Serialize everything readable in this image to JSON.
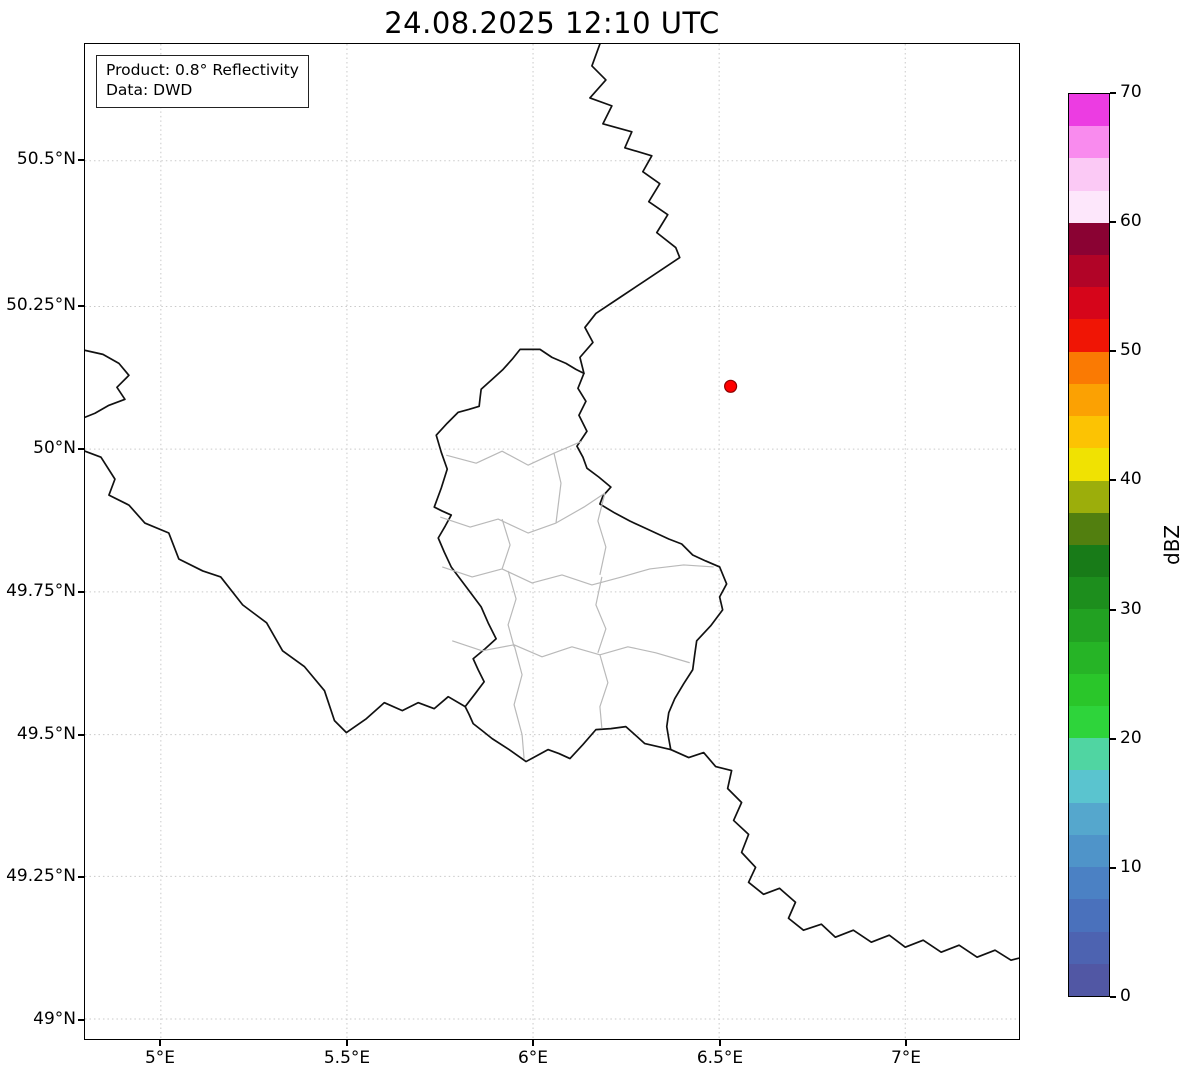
{
  "title": "24.08.2025 12:10 UTC",
  "info_box": {
    "product": "Product: 0.8° Reflectivity",
    "data_source": "Data: DWD"
  },
  "axes": {
    "x_ticks": [
      "5°E",
      "5.5°E",
      "6°E",
      "6.5°E",
      "7°E"
    ],
    "y_ticks": [
      "50.5°N",
      "50.25°N",
      "50°N",
      "49.75°N",
      "49.5°N",
      "49.25°N",
      "49°N"
    ]
  },
  "colorbar": {
    "label": "dBZ",
    "tick_labels": [
      "0",
      "10",
      "20",
      "30",
      "40",
      "50",
      "60",
      "70"
    ],
    "segment_colors_bottom_to_top": [
      "#5157a4",
      "#4d63b1",
      "#4a71bc",
      "#4b81c4",
      "#4f94c9",
      "#55a7cd",
      "#5ac4cf",
      "#50d5a2",
      "#2ed43b",
      "#2ac62a",
      "#26b426",
      "#22a122",
      "#1d8e1d",
      "#187b18",
      "#527f0f",
      "#9cae0b",
      "#f0e202",
      "#fcc303",
      "#fba103",
      "#fa7a03",
      "#f01505",
      "#d6051a",
      "#b10427",
      "#8a0233",
      "#fde7fb",
      "#fbc9f5",
      "#f98bee",
      "#ec3ce2"
    ]
  },
  "marker": {
    "label": "radar site",
    "color": "#ff0000"
  },
  "chart_data": {
    "type": "map",
    "title": "24.08.2025 12:10 UTC",
    "product": "0.8° Reflectivity",
    "data_source": "DWD",
    "lon_range_deg_e": [
      4.8,
      7.3
    ],
    "lat_range_deg_n": [
      48.97,
      50.7
    ],
    "x_tick_values_deg_e": [
      5,
      5.5,
      6,
      6.5,
      7
    ],
    "y_tick_values_deg_n": [
      49,
      49.25,
      49.5,
      49.75,
      50,
      50.25,
      50.5
    ],
    "grid": "dotted",
    "colorbar": {
      "label": "dBZ",
      "min": 0,
      "max": 70,
      "tick_step": 10,
      "segments": 28,
      "orientation": "vertical-right"
    },
    "markers": [
      {
        "name": "radar site",
        "lon_deg_e": 6.55,
        "lat_deg_n": 50.11,
        "style": "red filled circle"
      }
    ],
    "map_features": [
      "Luxembourg national outline with internal canton boundaries (gray)",
      "Belgium–Germany border (north)",
      "Germany–France border (southeast)",
      "France–Belgium border (west)"
    ],
    "radar_echoes": "none visible"
  }
}
